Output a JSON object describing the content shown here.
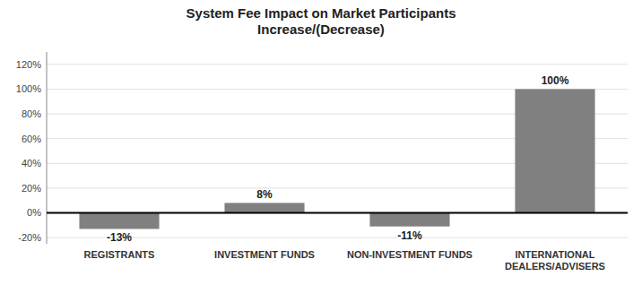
{
  "chart_data": {
    "type": "bar",
    "title": "System Fee Impact on Market Participants\nIncrease/(Decrease)",
    "categories": [
      "REGISTRANTS",
      "INVESTMENT FUNDS",
      "NON-INVESTMENT FUNDS",
      "INTERNATIONAL\nDEALERS/ADVISERS"
    ],
    "values": [
      -13,
      8,
      -11,
      100
    ],
    "value_labels": [
      "-13%",
      "8%",
      "-11%",
      "100%"
    ],
    "data_labels": true,
    "color": "#808080",
    "ylim": [
      -25,
      130
    ],
    "yticks": [
      {
        "value": -20,
        "label": "-20%"
      },
      {
        "value": 0,
        "label": "0%"
      },
      {
        "value": 20,
        "label": "20%"
      },
      {
        "value": 40,
        "label": "40%"
      },
      {
        "value": 60,
        "label": "60%"
      },
      {
        "value": 80,
        "label": "80%"
      },
      {
        "value": 100,
        "label": "100%"
      },
      {
        "value": 120,
        "label": "120%"
      }
    ],
    "grid": true
  }
}
